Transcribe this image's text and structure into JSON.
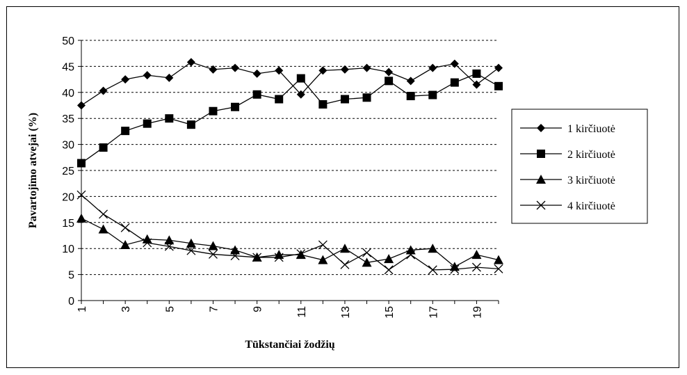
{
  "chart_data": {
    "type": "line",
    "x": [
      1,
      2,
      3,
      4,
      5,
      6,
      7,
      8,
      9,
      10,
      11,
      12,
      13,
      14,
      15,
      16,
      17,
      18,
      19,
      20
    ],
    "x_tick_labels": [
      "1",
      "3",
      "5",
      "7",
      "9",
      "11",
      "13",
      "15",
      "17",
      "19"
    ],
    "xlim": [
      1,
      20
    ],
    "ylim": [
      0,
      50
    ],
    "y_ticks": [
      0,
      5,
      10,
      15,
      20,
      25,
      30,
      35,
      40,
      45,
      50
    ],
    "xlabel": "Tūkstančiai žodžių",
    "ylabel": "Pavartojimo atvejai (%)",
    "grid": "horizontal-dashed",
    "legend_position": "right",
    "series": [
      {
        "name": "1 kirčiuotė",
        "marker": "diamond",
        "values": [
          37.5,
          40.3,
          42.5,
          43.3,
          42.8,
          45.8,
          44.4,
          44.7,
          43.6,
          44.2,
          39.6,
          44.2,
          44.4,
          44.7,
          43.9,
          42.2,
          44.7,
          45.5,
          41.5,
          44.7
        ]
      },
      {
        "name": "2 kirčiuotė",
        "marker": "square",
        "values": [
          26.4,
          29.4,
          32.6,
          34.0,
          35.0,
          33.8,
          36.4,
          37.2,
          39.6,
          38.7,
          42.7,
          37.7,
          38.7,
          39.0,
          42.2,
          39.3,
          39.5,
          41.9,
          43.6,
          41.2
        ]
      },
      {
        "name": "3 kirčiuotė",
        "marker": "triangle",
        "values": [
          15.8,
          13.7,
          10.7,
          11.8,
          11.6,
          11.0,
          10.5,
          9.7,
          8.3,
          8.8,
          8.8,
          7.8,
          10.0,
          7.3,
          8.0,
          9.7,
          10.0,
          6.5,
          8.8,
          7.8
        ]
      },
      {
        "name": "4 kirčiuotė",
        "marker": "x",
        "values": [
          20.3,
          16.6,
          14.0,
          11.1,
          10.4,
          9.6,
          8.9,
          8.6,
          8.3,
          8.3,
          9.0,
          10.7,
          6.9,
          9.2,
          5.9,
          8.8,
          5.9,
          6.0,
          6.4,
          6.1
        ]
      }
    ],
    "colors": {
      "line": "#000000",
      "grid": "#000000",
      "background": "#ffffff"
    }
  }
}
